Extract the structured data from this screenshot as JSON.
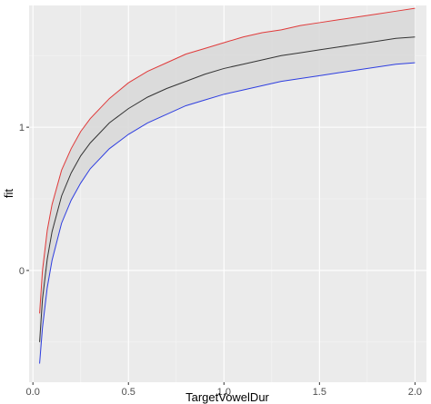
{
  "chart_data": {
    "type": "line",
    "title": "",
    "xlabel": "TargetVowelDur",
    "ylabel": "fit",
    "xlim": [
      -0.02,
      2.06
    ],
    "ylim": [
      -0.78,
      1.85
    ],
    "x_ticks": [
      0,
      0.5,
      1,
      1.5,
      2
    ],
    "x_tick_labels": [
      "0.0",
      "0.5",
      "1.0",
      "1.5",
      "2.0"
    ],
    "y_ticks": [
      0,
      1
    ],
    "y_tick_labels": [
      "0",
      "1"
    ],
    "grid": true,
    "legend": "none",
    "x": [
      0.035,
      0.05,
      0.075,
      0.1,
      0.15,
      0.2,
      0.25,
      0.3,
      0.4,
      0.5,
      0.6,
      0.7,
      0.8,
      0.9,
      1.0,
      1.1,
      1.2,
      1.3,
      1.4,
      1.5,
      1.6,
      1.7,
      1.8,
      1.9,
      2.0
    ],
    "series": [
      {
        "role": "fit",
        "color": "#333333",
        "values": [
          -0.5,
          -0.2,
          0.08,
          0.27,
          0.52,
          0.68,
          0.8,
          0.89,
          1.03,
          1.13,
          1.21,
          1.27,
          1.32,
          1.37,
          1.41,
          1.44,
          1.47,
          1.5,
          1.52,
          1.54,
          1.56,
          1.58,
          1.6,
          1.62,
          1.63
        ]
      },
      {
        "role": "upper",
        "color": "#e03a3a",
        "values": [
          -0.3,
          0.0,
          0.28,
          0.46,
          0.7,
          0.85,
          0.97,
          1.06,
          1.2,
          1.31,
          1.39,
          1.45,
          1.51,
          1.55,
          1.59,
          1.63,
          1.66,
          1.68,
          1.71,
          1.73,
          1.75,
          1.77,
          1.79,
          1.81,
          1.83
        ]
      },
      {
        "role": "lower",
        "color": "#2e3ee0",
        "values": [
          -0.65,
          -0.4,
          -0.12,
          0.07,
          0.33,
          0.49,
          0.61,
          0.71,
          0.85,
          0.95,
          1.03,
          1.09,
          1.15,
          1.19,
          1.23,
          1.26,
          1.29,
          1.32,
          1.34,
          1.36,
          1.38,
          1.4,
          1.42,
          1.44,
          1.45
        ]
      }
    ],
    "band_fill": "#d9d9d9",
    "panel_background": "#ebebeb"
  }
}
